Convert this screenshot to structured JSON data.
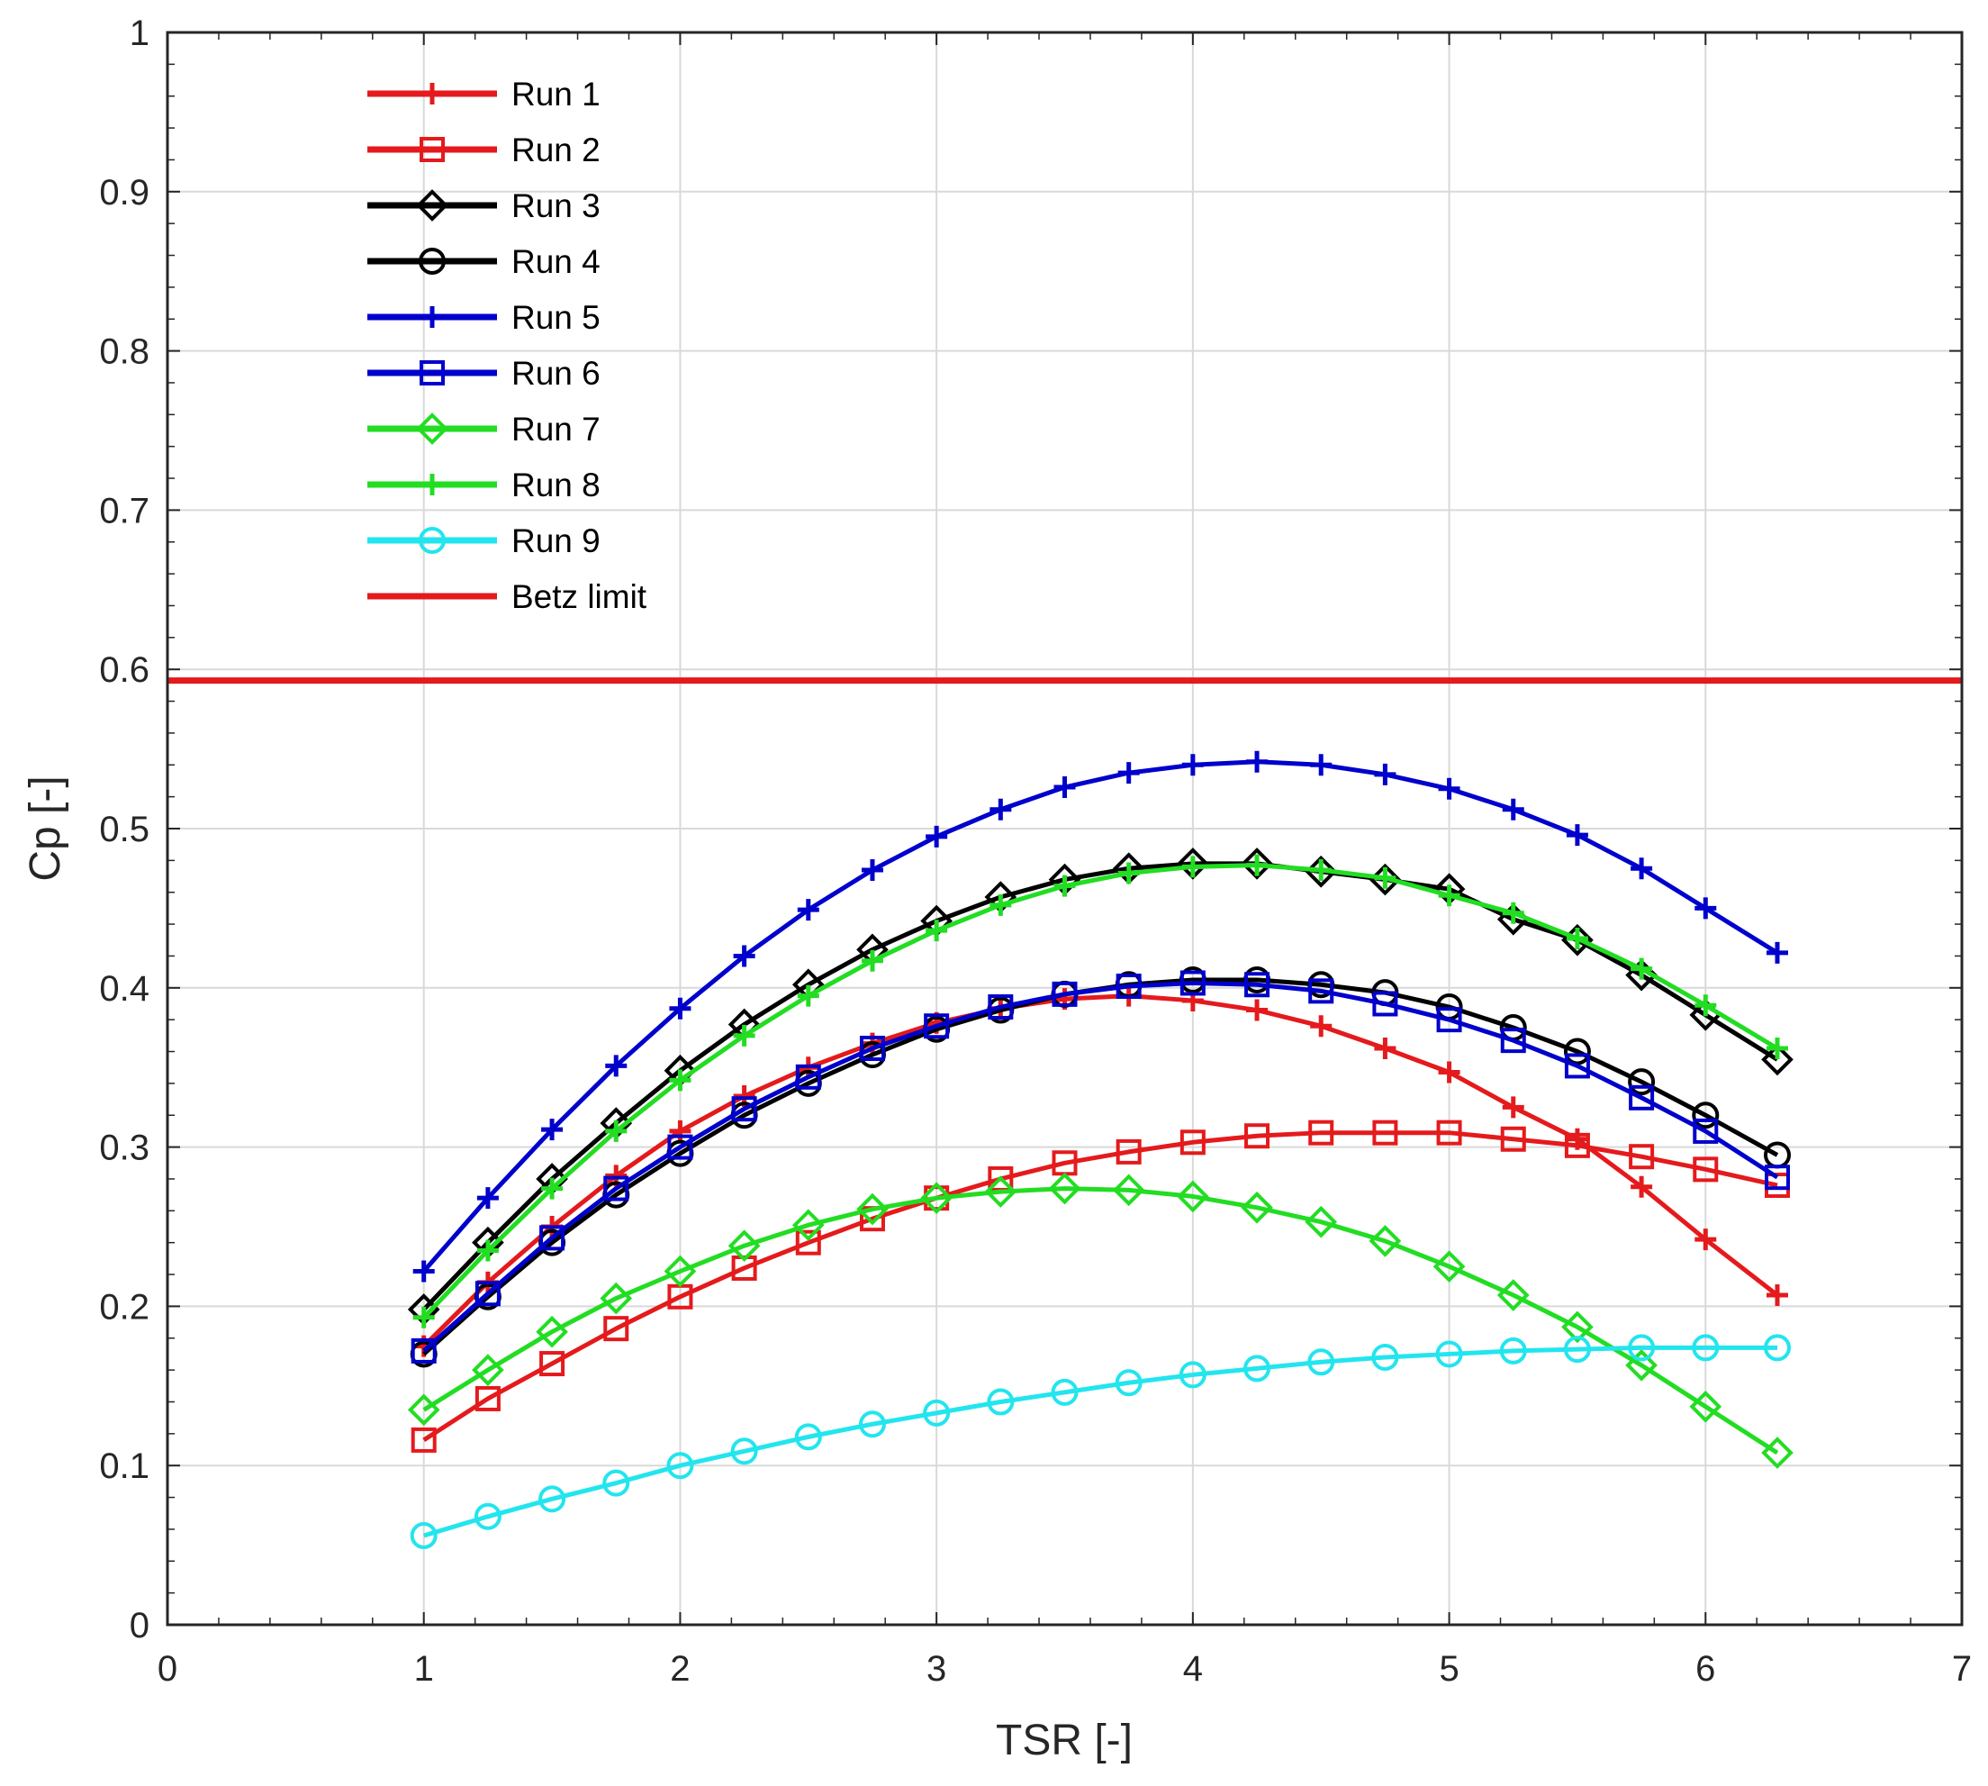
{
  "chart_data": {
    "type": "line",
    "title": "",
    "xlabel": "TSR [-]",
    "ylabel": "Cp [-]",
    "xlim": [
      0,
      7
    ],
    "ylim": [
      0,
      1
    ],
    "xticks": [
      "0",
      "1",
      "2",
      "3",
      "4",
      "5",
      "6",
      "7"
    ],
    "yticks": [
      "0",
      "0.1",
      "0.2",
      "0.3",
      "0.4",
      "0.5",
      "0.6",
      "0.7",
      "0.8",
      "0.9",
      "1"
    ],
    "grid": true,
    "legend_position": "top-left",
    "x": [
      1.0,
      1.25,
      1.5,
      1.75,
      2.0,
      2.25,
      2.5,
      2.75,
      3.0,
      3.25,
      3.5,
      3.75,
      4.0,
      4.25,
      4.5,
      4.75,
      5.0,
      5.25,
      5.5,
      5.75,
      6.0,
      6.28
    ],
    "series": [
      {
        "name": "Run 1",
        "color": "#e41a1c",
        "marker": "plus",
        "values": [
          0.175,
          0.215,
          0.25,
          0.282,
          0.31,
          0.332,
          0.35,
          0.365,
          0.378,
          0.387,
          0.393,
          0.395,
          0.392,
          0.386,
          0.376,
          0.362,
          0.347,
          0.325,
          0.305,
          0.275,
          0.242,
          0.207
        ]
      },
      {
        "name": "Run 2",
        "color": "#e41a1c",
        "marker": "square",
        "values": [
          0.116,
          0.142,
          0.164,
          0.186,
          0.206,
          0.224,
          0.24,
          0.255,
          0.268,
          0.28,
          0.29,
          0.297,
          0.303,
          0.307,
          0.309,
          0.309,
          0.309,
          0.305,
          0.301,
          0.294,
          0.286,
          0.276
        ]
      },
      {
        "name": "Run 3",
        "color": "#000000",
        "marker": "diamond",
        "values": [
          0.198,
          0.24,
          0.28,
          0.315,
          0.348,
          0.377,
          0.402,
          0.424,
          0.442,
          0.457,
          0.468,
          0.475,
          0.478,
          0.478,
          0.473,
          0.468,
          0.462,
          0.443,
          0.43,
          0.408,
          0.383,
          0.355
        ]
      },
      {
        "name": "Run 4",
        "color": "#000000",
        "marker": "circle",
        "values": [
          0.17,
          0.206,
          0.24,
          0.27,
          0.296,
          0.32,
          0.34,
          0.358,
          0.374,
          0.386,
          0.396,
          0.402,
          0.405,
          0.405,
          0.402,
          0.397,
          0.388,
          0.375,
          0.36,
          0.341,
          0.32,
          0.295
        ]
      },
      {
        "name": "Run 5",
        "color": "#0000cc",
        "marker": "plus",
        "values": [
          0.222,
          0.268,
          0.311,
          0.351,
          0.387,
          0.42,
          0.449,
          0.474,
          0.495,
          0.512,
          0.526,
          0.535,
          0.54,
          0.542,
          0.54,
          0.534,
          0.525,
          0.512,
          0.496,
          0.475,
          0.45,
          0.422
        ]
      },
      {
        "name": "Run 6",
        "color": "#0000cc",
        "marker": "square",
        "values": [
          0.172,
          0.208,
          0.243,
          0.274,
          0.3,
          0.324,
          0.344,
          0.362,
          0.376,
          0.388,
          0.396,
          0.401,
          0.403,
          0.402,
          0.398,
          0.39,
          0.38,
          0.367,
          0.351,
          0.331,
          0.31,
          0.281
        ]
      },
      {
        "name": "Run 7",
        "color": "#22dd22",
        "marker": "diamond",
        "values": [
          0.135,
          0.16,
          0.184,
          0.205,
          0.222,
          0.238,
          0.251,
          0.261,
          0.268,
          0.272,
          0.274,
          0.273,
          0.269,
          0.262,
          0.253,
          0.241,
          0.225,
          0.207,
          0.187,
          0.163,
          0.137,
          0.108
        ]
      },
      {
        "name": "Run 8",
        "color": "#22dd22",
        "marker": "plus",
        "values": [
          0.193,
          0.235,
          0.274,
          0.31,
          0.342,
          0.37,
          0.395,
          0.417,
          0.436,
          0.452,
          0.464,
          0.472,
          0.476,
          0.477,
          0.474,
          0.469,
          0.458,
          0.447,
          0.431,
          0.412,
          0.389,
          0.362
        ]
      },
      {
        "name": "Run 9",
        "color": "#22e5ee",
        "marker": "circle",
        "values": [
          0.056,
          0.068,
          0.079,
          0.089,
          0.1,
          0.109,
          0.118,
          0.126,
          0.133,
          0.14,
          0.146,
          0.152,
          0.157,
          0.161,
          0.165,
          0.168,
          0.17,
          0.172,
          0.173,
          0.174,
          0.174,
          0.174
        ]
      },
      {
        "name": "Betz limit",
        "color": "#e41a1c",
        "marker": "none",
        "constant": 0.593
      }
    ]
  }
}
